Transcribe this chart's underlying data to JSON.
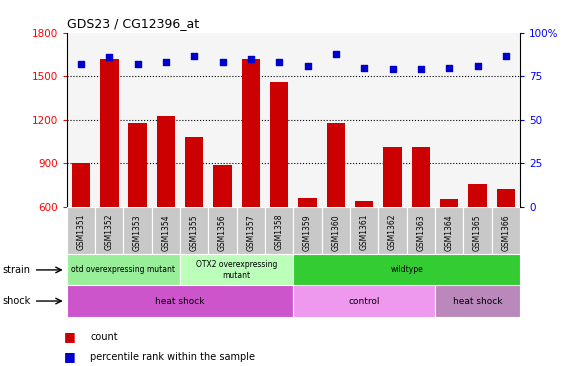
{
  "title": "GDS23 / CG12396_at",
  "samples": [
    "GSM1351",
    "GSM1352",
    "GSM1353",
    "GSM1354",
    "GSM1355",
    "GSM1356",
    "GSM1357",
    "GSM1358",
    "GSM1359",
    "GSM1360",
    "GSM1361",
    "GSM1362",
    "GSM1363",
    "GSM1364",
    "GSM1365",
    "GSM1366"
  ],
  "counts": [
    900,
    1620,
    1175,
    1230,
    1080,
    890,
    1620,
    1460,
    660,
    1175,
    640,
    1010,
    1010,
    655,
    760,
    720
  ],
  "percentiles": [
    82,
    86,
    82,
    83,
    87,
    83,
    85,
    83,
    81,
    88,
    80,
    79,
    79,
    80,
    81,
    87
  ],
  "ylim_left": [
    600,
    1800
  ],
  "ylim_right": [
    0,
    100
  ],
  "yticks_left": [
    600,
    900,
    1200,
    1500,
    1800
  ],
  "yticks_right": [
    0,
    25,
    50,
    75,
    100
  ],
  "bar_color": "#cc0000",
  "dot_color": "#0000cc",
  "strain_labels": [
    {
      "text": "otd overexpressing mutant",
      "start": 0,
      "end": 4,
      "color": "#99ee99"
    },
    {
      "text": "OTX2 overexpressing\nmutant",
      "start": 4,
      "end": 8,
      "color": "#bbffbb"
    },
    {
      "text": "wildtype",
      "start": 8,
      "end": 16,
      "color": "#33cc33"
    }
  ],
  "shock_labels": [
    {
      "text": "heat shock",
      "start": 0,
      "end": 8,
      "color": "#cc55cc"
    },
    {
      "text": "control",
      "start": 8,
      "end": 13,
      "color": "#ee99ee"
    },
    {
      "text": "heat shock",
      "start": 13,
      "end": 16,
      "color": "#bb88bb"
    }
  ],
  "legend_count_color": "#cc0000",
  "legend_dot_color": "#0000cc",
  "cell_bg": "#c8c8c8",
  "plot_bg": "#f5f5f5"
}
